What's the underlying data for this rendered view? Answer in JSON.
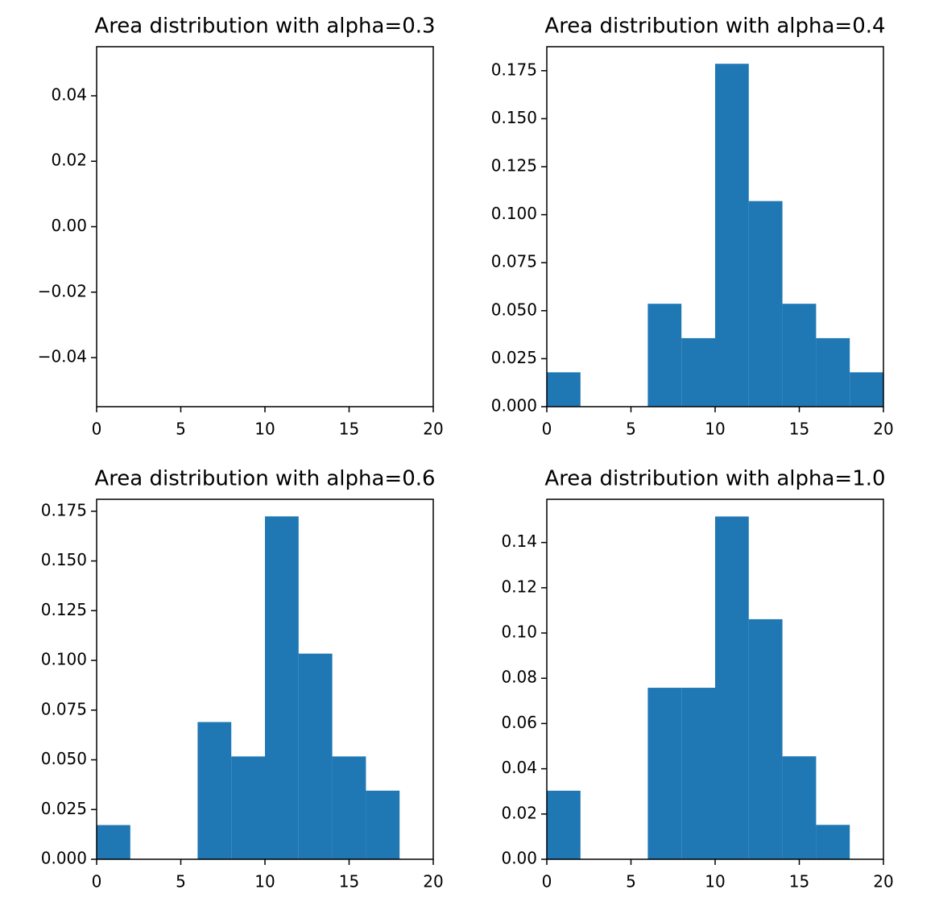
{
  "chart_data": [
    {
      "type": "histogram",
      "title": "Area distribution with alpha=0.3",
      "values": [],
      "color": "#1f77b4",
      "xlim": [
        0,
        20
      ],
      "xticks": [
        0,
        5,
        10,
        15,
        20
      ],
      "ylim": [
        -0.055,
        0.055
      ],
      "yticks": [
        {
          "value": -0.04,
          "label": "−0.04"
        },
        {
          "value": -0.02,
          "label": "−0.02"
        },
        {
          "value": 0,
          "label": "0.00"
        },
        0.02,
        0.04
      ]
    },
    {
      "type": "histogram",
      "title": "Area distribution with alpha=0.4",
      "color": "#1f77b4",
      "bins": [
        0,
        2,
        4,
        6,
        8,
        10,
        12,
        14,
        16,
        18,
        20
      ],
      "values": [
        0.0179,
        0,
        0,
        0.0536,
        0.0357,
        0.1786,
        0.1071,
        0.0536,
        0.0357,
        0.0179
      ],
      "xlim": [
        0,
        20
      ],
      "xticks": [
        0,
        5,
        10,
        15,
        20
      ],
      "ylim": [
        0,
        0.1875
      ],
      "yticks": [
        {
          "value": 0,
          "label": "0.000"
        },
        0.025,
        {
          "value": 0.05,
          "label": "0.050"
        },
        0.075,
        {
          "value": 0.1,
          "label": "0.100"
        },
        0.125,
        {
          "value": 0.15,
          "label": "0.150"
        },
        0.175
      ]
    },
    {
      "type": "histogram",
      "title": "Area distribution with alpha=0.6",
      "color": "#1f77b4",
      "bins": [
        0,
        2,
        4,
        6,
        8,
        10,
        12,
        14,
        16,
        18,
        20
      ],
      "values": [
        0.0172,
        0,
        0,
        0.069,
        0.0517,
        0.1724,
        0.1034,
        0.0517,
        0.0345,
        0
      ],
      "xlim": [
        0,
        20
      ],
      "xticks": [
        0,
        5,
        10,
        15,
        20
      ],
      "ylim": [
        0,
        0.181
      ],
      "yticks": [
        {
          "value": 0,
          "label": "0.000"
        },
        0.025,
        {
          "value": 0.05,
          "label": "0.050"
        },
        0.075,
        {
          "value": 0.1,
          "label": "0.100"
        },
        0.125,
        {
          "value": 0.15,
          "label": "0.150"
        },
        0.175
      ]
    },
    {
      "type": "histogram",
      "title": "Area distribution with alpha=1.0",
      "color": "#1f77b4",
      "bins": [
        0,
        2,
        4,
        6,
        8,
        10,
        12,
        14,
        16,
        18,
        20
      ],
      "values": [
        0.0303,
        0,
        0,
        0.0758,
        0.0758,
        0.1515,
        0.1061,
        0.0455,
        0.0152,
        0
      ],
      "xlim": [
        0,
        20
      ],
      "xticks": [
        0,
        5,
        10,
        15,
        20
      ],
      "ylim": [
        0,
        0.1591
      ],
      "yticks": [
        {
          "value": 0,
          "label": "0.00"
        },
        0.02,
        0.04,
        0.06,
        0.08,
        {
          "value": 0.1,
          "label": "0.10"
        },
        0.12,
        0.14
      ]
    }
  ]
}
